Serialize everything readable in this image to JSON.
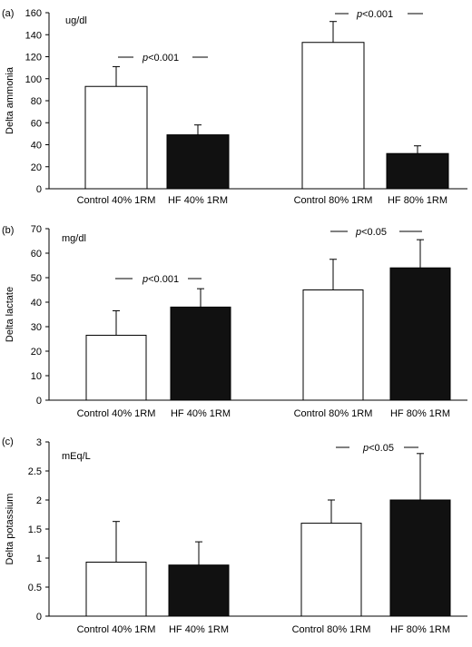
{
  "chart_data": [
    {
      "type": "bar",
      "panel": "(a)",
      "unit": "ug/dl",
      "ylabel": "Delta ammonia",
      "ylim": [
        0,
        160
      ],
      "yticks": [
        0,
        20,
        40,
        60,
        80,
        100,
        120,
        140,
        160
      ],
      "categories": [
        "Control 40% 1RM",
        "HF 40% 1RM",
        "Control 80% 1RM",
        "HF 80% 1RM"
      ],
      "values": [
        93,
        49,
        133,
        32
      ],
      "errors": [
        18,
        9,
        19,
        7
      ],
      "fills": [
        "#ffffff",
        "#111111",
        "#ffffff",
        "#111111"
      ],
      "annotations": [
        {
          "p_text": "p",
          "rel_text": "<0.001",
          "between": [
            0,
            1
          ]
        },
        {
          "p_text": "p",
          "rel_text": "<0.001",
          "between": [
            2,
            3
          ]
        }
      ]
    },
    {
      "type": "bar",
      "panel": "(b)",
      "unit": "mg/dl",
      "ylabel": "Delta lactate",
      "ylim": [
        0,
        70
      ],
      "yticks": [
        0,
        10,
        20,
        30,
        40,
        50,
        60,
        70
      ],
      "categories": [
        "Control 40% 1RM",
        "HF 40% 1RM",
        "Control 80% 1RM",
        "HF 80% 1RM"
      ],
      "values": [
        26.5,
        38,
        45,
        54
      ],
      "errors": [
        10,
        7.5,
        12.5,
        11.5
      ],
      "fills": [
        "#ffffff",
        "#111111",
        "#ffffff",
        "#111111"
      ],
      "annotations": [
        {
          "p_text": "p",
          "rel_text": "<0.001",
          "between": [
            0,
            1
          ]
        },
        {
          "p_text": "p",
          "rel_text": "<0.05",
          "between": [
            2,
            3
          ]
        }
      ]
    },
    {
      "type": "bar",
      "panel": "(c)",
      "unit": "mEq/L",
      "ylabel": "Delta potassium",
      "ylim": [
        0,
        3
      ],
      "yticks": [
        "0",
        "0.5",
        "1",
        "1.5",
        "2",
        "2.5",
        "3"
      ],
      "categories": [
        "Control 40% 1RM",
        "HF 40% 1RM",
        "Control 80% 1RM",
        "HF 80% 1RM"
      ],
      "values": [
        0.93,
        0.88,
        1.6,
        2.0
      ],
      "errors": [
        0.7,
        0.4,
        0.4,
        0.8
      ],
      "fills": [
        "#ffffff",
        "#111111",
        "#ffffff",
        "#111111"
      ],
      "annotations": [
        {
          "p_text": "p",
          "rel_text": "<0.05",
          "between": [
            2,
            3
          ]
        }
      ]
    }
  ]
}
